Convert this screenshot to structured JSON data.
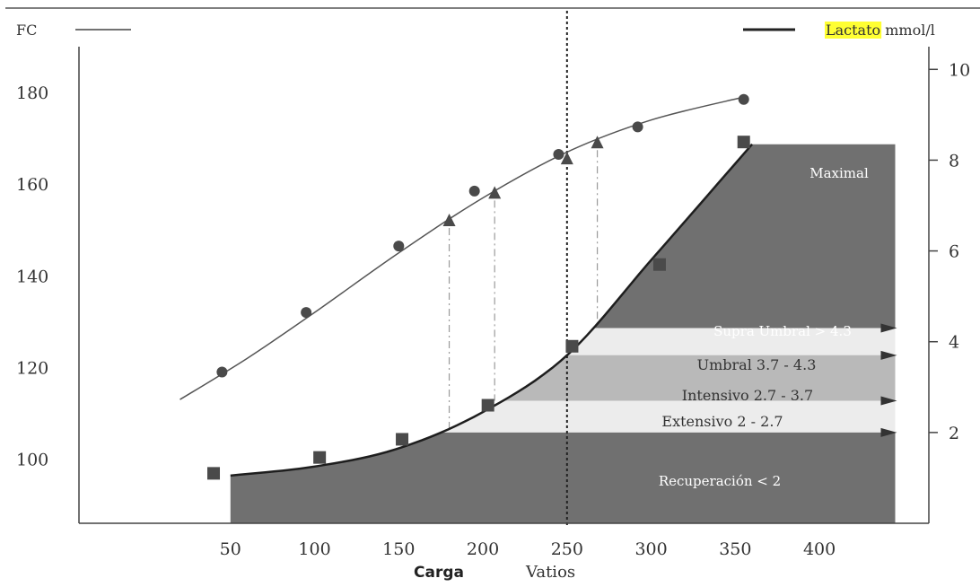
{
  "chart_data": {
    "type": "line",
    "title": "",
    "legend": {
      "placement": "top",
      "left_label": "FC",
      "right_label_highlight": "Lactato",
      "right_label_unit": "mmol/l"
    },
    "xlabel": "Carga",
    "xlabel_unit": "Vatios",
    "x_ticks": [
      50,
      100,
      150,
      200,
      250,
      300,
      350,
      400
    ],
    "xlim": [
      -40,
      465
    ],
    "left_axis": {
      "label": "FC",
      "ticks": [
        100,
        120,
        140,
        160,
        180
      ],
      "range": [
        86,
        190
      ]
    },
    "right_axis": {
      "label": "Lactato mmol/l",
      "ticks": [
        2,
        4,
        6,
        8,
        10
      ],
      "range": [
        0,
        10.5
      ]
    },
    "grid": false,
    "threshold_line_x": 250,
    "series": [
      {
        "name": "FC",
        "axis": "left",
        "marker": "circle",
        "points": [
          [
            45,
            119
          ],
          [
            95,
            132
          ],
          [
            150,
            146.5
          ],
          [
            195,
            158.5
          ],
          [
            245,
            166.5
          ],
          [
            292,
            172.5
          ],
          [
            355,
            178.5
          ]
        ]
      },
      {
        "name": "",
        "axis": "left",
        "marker": "triangle",
        "points": [
          [
            180,
            152
          ],
          [
            207,
            158
          ],
          [
            250,
            165.5
          ],
          [
            268,
            169
          ]
        ]
      },
      {
        "name": "Lactato",
        "axis": "right",
        "marker": "square",
        "points": [
          [
            40,
            1.1
          ],
          [
            103,
            1.45
          ],
          [
            152,
            1.85
          ],
          [
            203,
            2.6
          ],
          [
            253,
            3.9
          ],
          [
            305,
            5.7
          ],
          [
            355,
            8.4
          ]
        ]
      }
    ],
    "fc_curve": [
      [
        20,
        113
      ],
      [
        60,
        122
      ],
      [
        100,
        132
      ],
      [
        150,
        145
      ],
      [
        200,
        157
      ],
      [
        250,
        167
      ],
      [
        300,
        174
      ],
      [
        355,
        179
      ]
    ],
    "lactato_curve": [
      [
        50,
        1.05
      ],
      [
        100,
        1.25
      ],
      [
        150,
        1.65
      ],
      [
        200,
        2.45
      ],
      [
        250,
        3.7
      ],
      [
        300,
        5.8
      ],
      [
        360,
        8.35
      ]
    ],
    "drop_lines": [
      {
        "x": 180,
        "from_fc": 152,
        "to_lactato": 2.0
      },
      {
        "x": 207,
        "from_fc": 158,
        "to_lactato": 2.7
      },
      {
        "x": 268,
        "from_fc": 169,
        "to_lactato": 4.3
      }
    ],
    "zones": [
      {
        "label": "Recuperación < 2",
        "lower": 0,
        "upper": 2
      },
      {
        "label": "Extensivo 2 - 2.7",
        "lower": 2,
        "upper": 2.7
      },
      {
        "label": "Intensivo 2.7 - 3.7",
        "lower": 2.7,
        "upper": 3.7
      },
      {
        "label": "Umbral 3.7 - 4.3",
        "lower": 3.7,
        "upper": 4.3
      },
      {
        "label": "Supra Umbral > 4.3",
        "lower": 4.3,
        "upper": 8.35
      },
      {
        "label": "Maximal",
        "lower": 8.35,
        "upper": 8.35
      }
    ],
    "zone_right_edge": 445,
    "colors": {
      "dark_zone": "#707070",
      "intensivo": "#b9b9b9",
      "light_band": "#ececec",
      "highlight": "#ffff33",
      "ink": "#333333"
    }
  }
}
